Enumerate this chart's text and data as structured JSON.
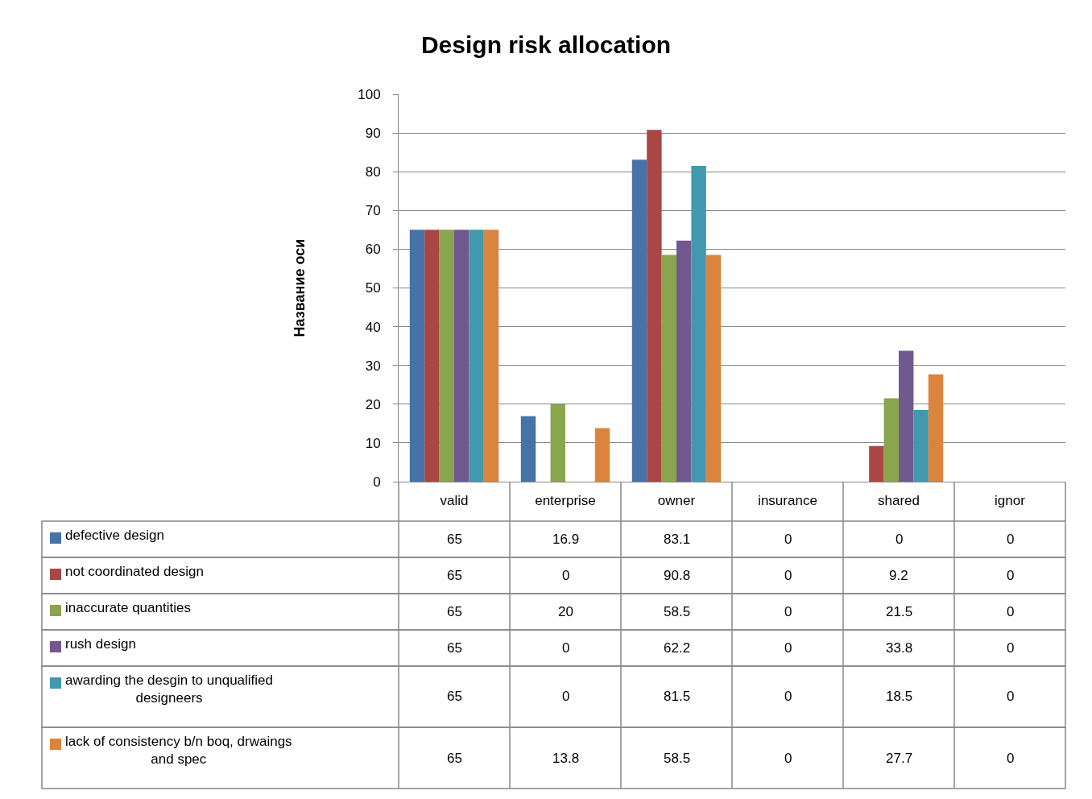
{
  "chart_data": {
    "type": "bar",
    "title": "Design risk allocation",
    "ylabel": "Название оси",
    "categories": [
      "valid",
      "enterprise",
      "owner",
      "insurance",
      "shared",
      "ignor"
    ],
    "series": [
      {
        "name": "defective design",
        "color": "#4572a7",
        "values": [
          65,
          16.9,
          83.1,
          0,
          0,
          0
        ]
      },
      {
        "name": "not coordinated design",
        "color": "#aa4643",
        "values": [
          65,
          0,
          90.8,
          0,
          9.2,
          0
        ]
      },
      {
        "name": "inaccurate quantities",
        "color": "#89a54e",
        "values": [
          65,
          20,
          58.5,
          0,
          21.5,
          0
        ]
      },
      {
        "name": "rush design",
        "color": "#71588f",
        "values": [
          65,
          0,
          62.2,
          0,
          33.8,
          0
        ]
      },
      {
        "name": "awarding the desgin to unqualified designeers",
        "color": "#4198af",
        "values": [
          65,
          0,
          81.5,
          0,
          18.5,
          0
        ]
      },
      {
        "name": "lack of consistency b/n boq, drwaings and spec",
        "color": "#db843d",
        "values": [
          65,
          13.8,
          58.5,
          0,
          27.7,
          0
        ]
      }
    ],
    "ylim": [
      0,
      100
    ],
    "yticks": [
      0,
      10,
      20,
      30,
      40,
      50,
      60,
      70,
      80,
      90,
      100
    ],
    "grid": "y",
    "data_labels": true,
    "legend": "bottom left"
  }
}
